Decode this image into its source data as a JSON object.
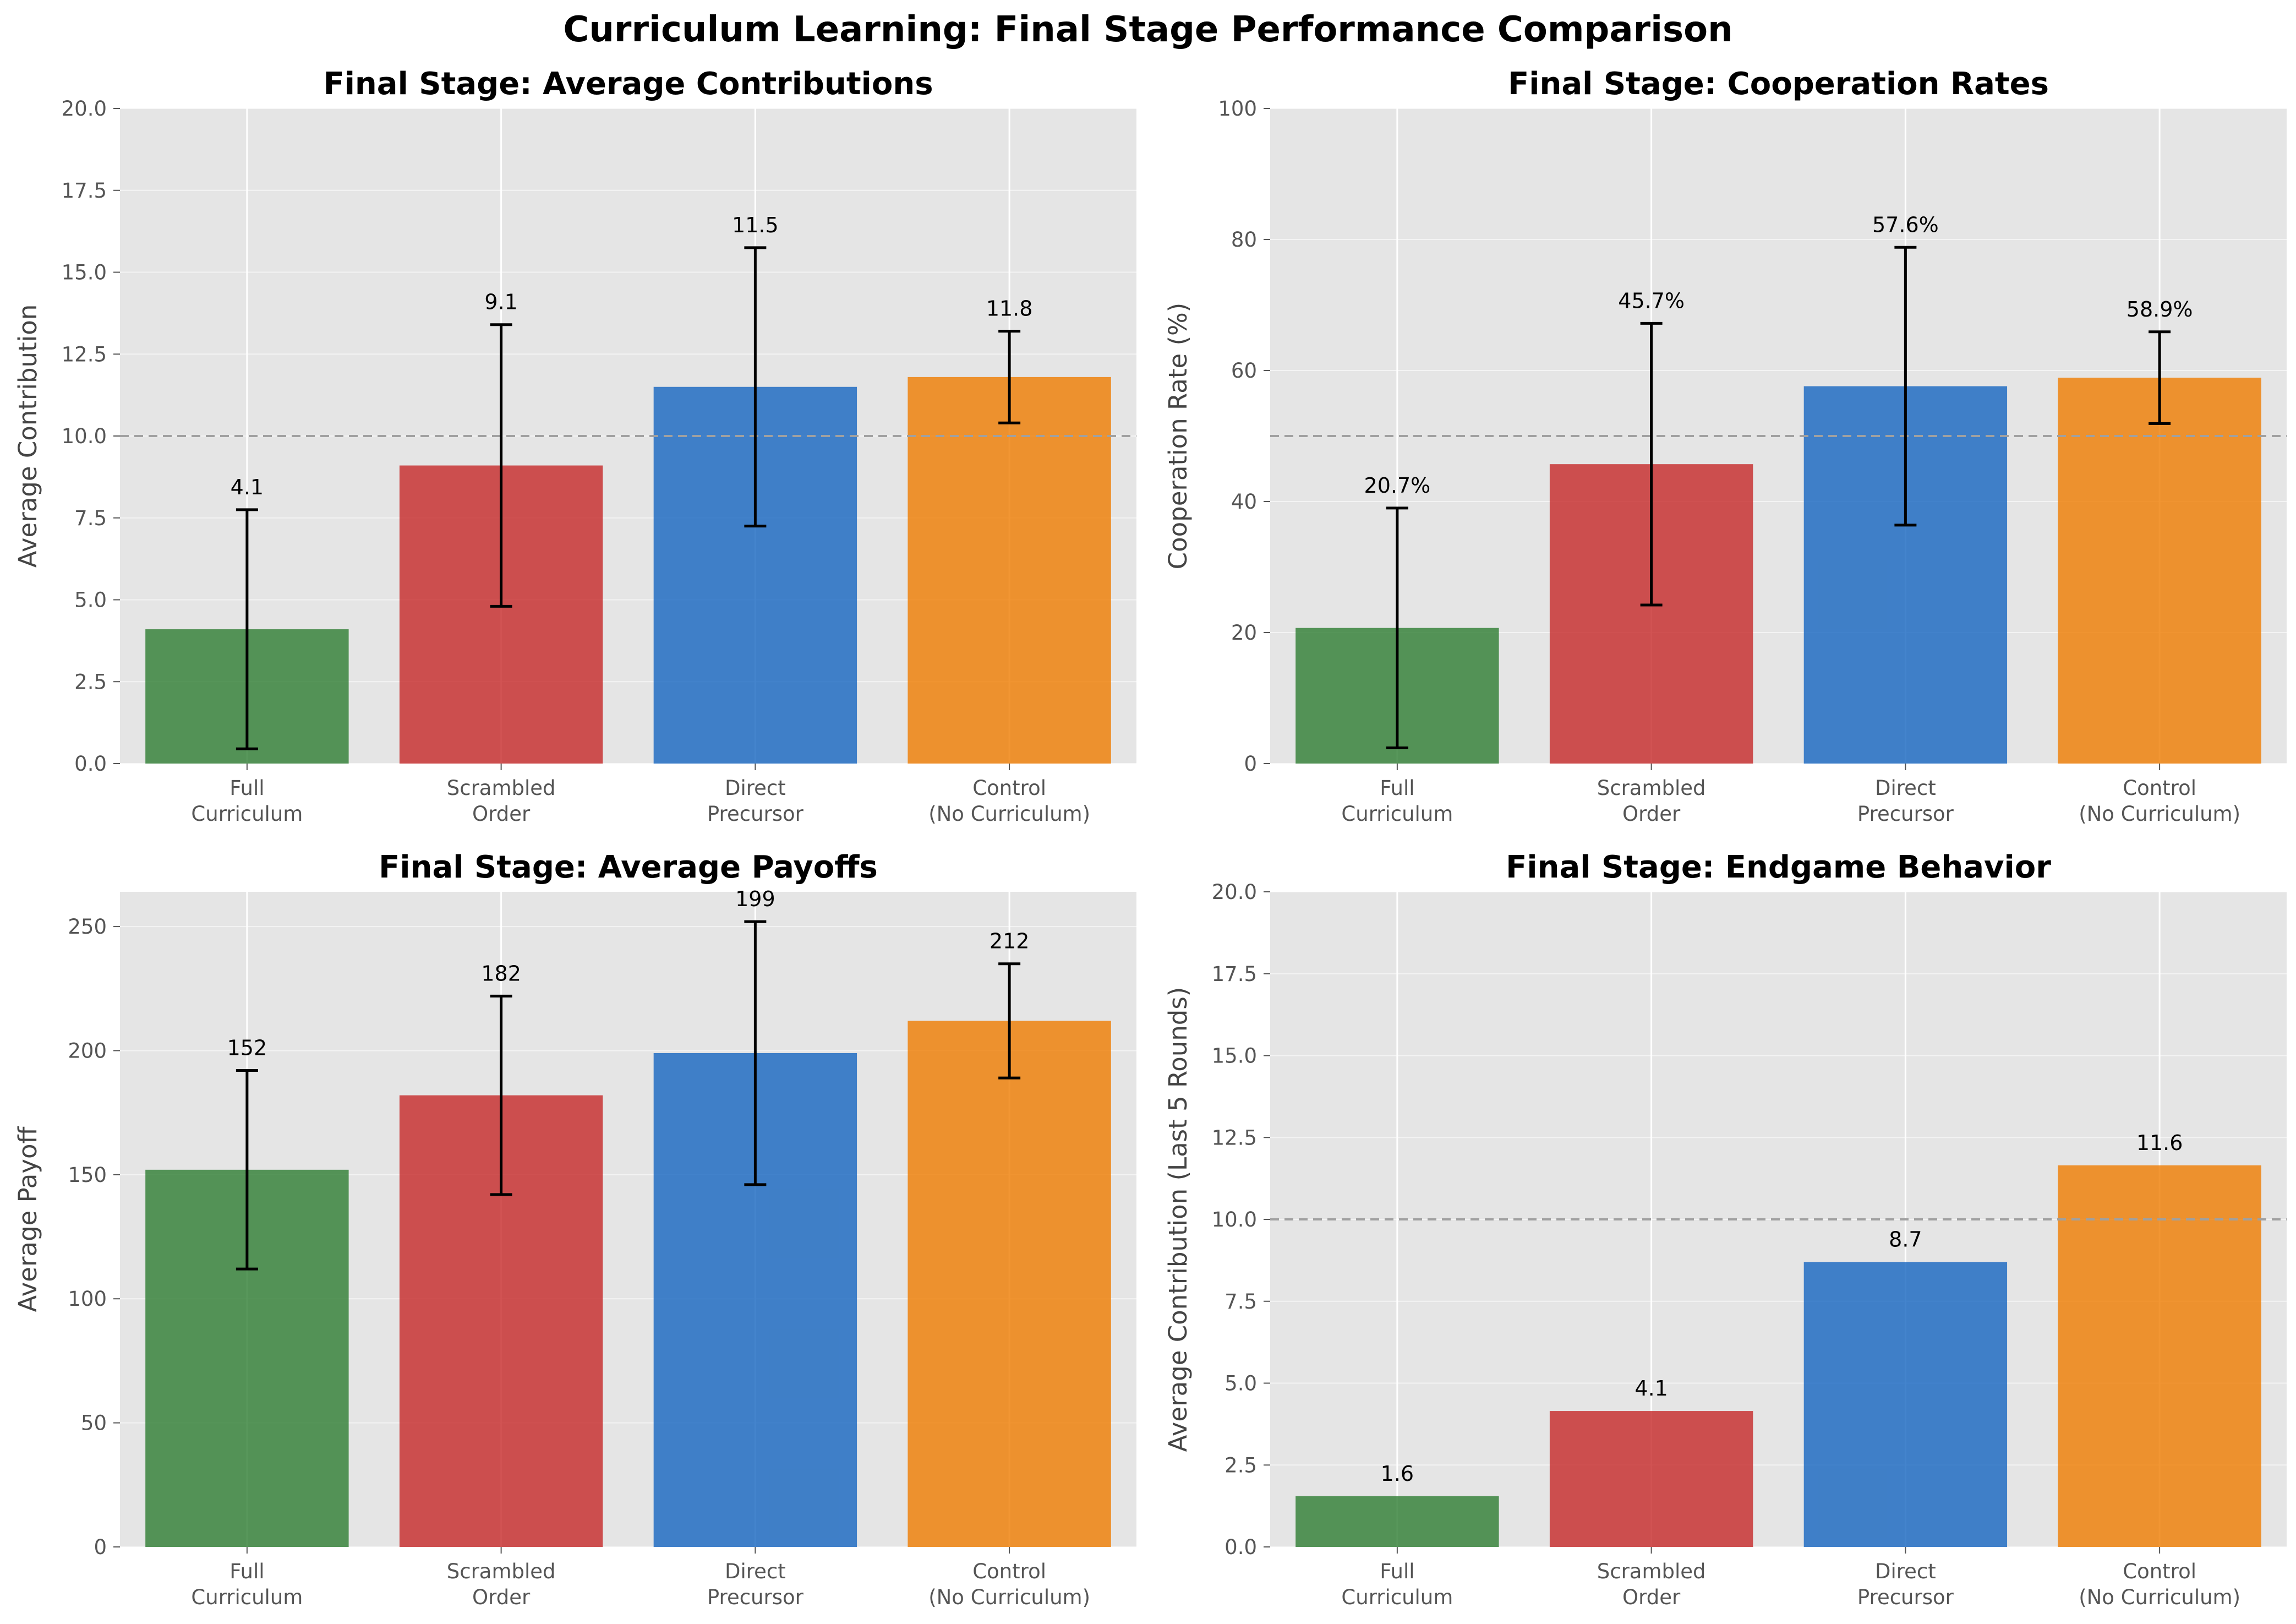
{
  "title": "Curriculum Learning: Final Stage Performance Comparison",
  "colors": {
    "Full Curriculum": "#2e7d32",
    "Scrambled Order": "#c62828",
    "Direct Precursor": "#1565c0",
    "Control (No Curriculum)": "#ef7c00",
    "panel_bg": "#e5e5e5",
    "grid": "#ffffff",
    "reference_line": "#a0a0a0"
  },
  "chart_data": [
    {
      "type": "bar",
      "title": "Final Stage: Average Contributions",
      "xlabel": "",
      "ylabel": "Average Contribution",
      "categories": [
        "Full\nCurriculum",
        "Scrambled\nOrder",
        "Direct\nPrecursor",
        "Control\n(No Curriculum)"
      ],
      "values": [
        4.1,
        9.1,
        11.5,
        11.8
      ],
      "errors": [
        3.65,
        4.3,
        4.25,
        1.4
      ],
      "data_labels": [
        "4.1",
        "9.1",
        "11.5",
        "11.8"
      ],
      "ylim": [
        0,
        20
      ],
      "yticks": [
        0,
        2.5,
        5,
        7.5,
        10,
        12.5,
        15,
        17.5,
        20
      ],
      "ytick_labels": [
        "0.0",
        "2.5",
        "5.0",
        "7.5",
        "10.0",
        "12.5",
        "15.0",
        "17.5",
        "20.0"
      ],
      "reference_line": 10,
      "grid": true
    },
    {
      "type": "bar",
      "title": "Final Stage: Cooperation Rates",
      "xlabel": "",
      "ylabel": "Cooperation Rate (%)",
      "categories": [
        "Full\nCurriculum",
        "Scrambled\nOrder",
        "Direct\nPrecursor",
        "Control\n(No Curriculum)"
      ],
      "values": [
        20.7,
        45.7,
        57.6,
        58.9
      ],
      "errors": [
        18.3,
        21.5,
        21.2,
        7.0
      ],
      "data_labels": [
        "20.7%",
        "45.7%",
        "57.6%",
        "58.9%"
      ],
      "ylim": [
        0,
        100
      ],
      "yticks": [
        0,
        20,
        40,
        60,
        80,
        100
      ],
      "ytick_labels": [
        "0",
        "20",
        "40",
        "60",
        "80",
        "100"
      ],
      "reference_line": 50,
      "grid": true
    },
    {
      "type": "bar",
      "title": "Final Stage: Average Payoffs",
      "xlabel": "",
      "ylabel": "Average Payoff",
      "categories": [
        "Full\nCurriculum",
        "Scrambled\nOrder",
        "Direct\nPrecursor",
        "Control\n(No Curriculum)"
      ],
      "values": [
        152,
        182,
        199,
        212
      ],
      "errors": [
        40,
        40,
        53,
        23
      ],
      "data_labels": [
        "152",
        "182",
        "199",
        "212"
      ],
      "ylim": [
        0,
        264
      ],
      "yticks": [
        0,
        50,
        100,
        150,
        200,
        250
      ],
      "ytick_labels": [
        "0",
        "50",
        "100",
        "150",
        "200",
        "250"
      ],
      "reference_line": null,
      "grid": true
    },
    {
      "type": "bar",
      "title": "Final Stage: Endgame Behavior",
      "xlabel": "",
      "ylabel": "Average Contribution (Last 5 Rounds)",
      "categories": [
        "Full\nCurriculum",
        "Scrambled\nOrder",
        "Direct\nPrecursor",
        "Control\n(No Curriculum)"
      ],
      "values": [
        1.55,
        4.15,
        8.7,
        11.65
      ],
      "errors": null,
      "data_labels": [
        "1.6",
        "4.1",
        "8.7",
        "11.6"
      ],
      "ylim": [
        0,
        20
      ],
      "yticks": [
        0,
        2.5,
        5,
        7.5,
        10,
        12.5,
        15,
        17.5,
        20
      ],
      "ytick_labels": [
        "0.0",
        "2.5",
        "5.0",
        "7.5",
        "10.0",
        "12.5",
        "15.0",
        "17.5",
        "20.0"
      ],
      "reference_line": 10,
      "grid": true
    }
  ]
}
